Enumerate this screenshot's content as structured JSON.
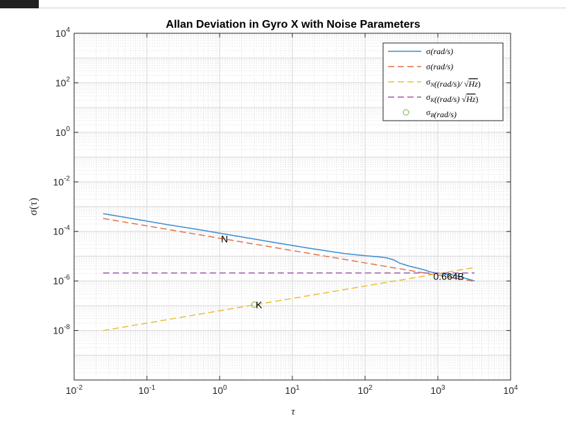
{
  "chart_data": {
    "type": "line",
    "title": "Allan Deviation in Gyro X with Noise Parameters",
    "xlabel": "τ",
    "ylabel": "σ(τ)",
    "xscale": "log",
    "yscale": "log",
    "xlim": [
      0.01,
      10000
    ],
    "ylim": [
      1e-10,
      10000
    ],
    "grid": true,
    "legend_position": "top-right",
    "x_ticks": [
      {
        "value": 0.01,
        "base": "10",
        "exp": "-2"
      },
      {
        "value": 0.1,
        "base": "10",
        "exp": "-1"
      },
      {
        "value": 1,
        "base": "10",
        "exp": "0"
      },
      {
        "value": 10,
        "base": "10",
        "exp": "1"
      },
      {
        "value": 100,
        "base": "10",
        "exp": "2"
      },
      {
        "value": 1000,
        "base": "10",
        "exp": "3"
      },
      {
        "value": 10000,
        "base": "10",
        "exp": "4"
      }
    ],
    "y_ticks": [
      {
        "value": 1e-08,
        "base": "10",
        "exp": "-8"
      },
      {
        "value": 1e-06,
        "base": "10",
        "exp": "-6"
      },
      {
        "value": 0.0001,
        "base": "10",
        "exp": "-4"
      },
      {
        "value": 0.01,
        "base": "10",
        "exp": "-2"
      },
      {
        "value": 1,
        "base": "10",
        "exp": "0"
      },
      {
        "value": 100,
        "base": "10",
        "exp": "2"
      },
      {
        "value": 10000,
        "base": "10",
        "exp": "4"
      }
    ],
    "series": [
      {
        "color": "#3b8dd0",
        "style": "solid",
        "x": [
          0.025,
          0.05,
          0.1,
          0.2,
          0.5,
          1,
          2,
          5,
          10,
          20,
          50,
          100,
          150,
          200,
          250,
          300,
          400,
          600,
          800,
          1000,
          1500,
          2000,
          3200
        ],
        "y": [
          0.00052,
          0.00037,
          0.00026,
          0.000185,
          0.00012,
          8.5e-05,
          6e-05,
          3.8e-05,
          2.7e-05,
          1.95e-05,
          1.3e-05,
          1.05e-05,
          9.5e-06,
          8.5e-06,
          7e-06,
          5.2e-06,
          4e-06,
          3e-06,
          2.3e-06,
          2e-06,
          1.8e-06,
          1.5e-06,
          1e-06
        ]
      },
      {
        "color": "#e0744a",
        "style": "dash",
        "x": [
          0.025,
          3200
        ],
        "y": [
          0.000334,
          9.5e-07
        ]
      },
      {
        "color": "#ecc02c",
        "style": "dash",
        "x": [
          0.025,
          3200
        ],
        "y": [
          9.9e-09,
          3.5e-06
        ]
      },
      {
        "color": "#9b5ea6",
        "style": "dash",
        "x": [
          0.025,
          3200
        ],
        "y": [
          2.1e-06,
          2.1e-06
        ]
      },
      {
        "color": "#78b04a",
        "style": "marker",
        "x": [
          3
        ],
        "y": [
          1.1e-07
        ]
      }
    ],
    "annotations": [
      {
        "text": "N",
        "x": 1,
        "y": 5e-05
      },
      {
        "text": "K",
        "x": 3,
        "y": 1.1e-07
      },
      {
        "text": "0.664B",
        "x": 830,
        "y": 1.55e-06
      }
    ]
  },
  "legend": [
    {
      "sym": "σ",
      "sub": "",
      "tail": "(rad/s)",
      "sqrt": "",
      "close": ""
    },
    {
      "sym": "σ",
      "sub": "",
      "tail": "(rad/s)",
      "sqrt": "",
      "close": ""
    },
    {
      "sym": "σ",
      "sub": "N",
      "tail": "((rad/s)/",
      "sqrt": "Hz",
      "close": ")"
    },
    {
      "sym": "σ",
      "sub": "K",
      "tail": "((rad/s)",
      "sqrt": "Hz",
      "close": ")"
    },
    {
      "sym": "σ",
      "sub": "B",
      "tail": "(rad/s)",
      "sqrt": "",
      "close": ""
    }
  ]
}
